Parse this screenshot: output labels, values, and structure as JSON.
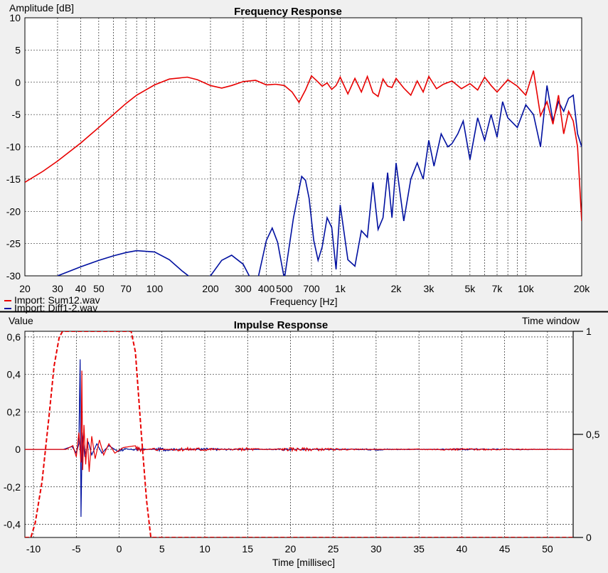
{
  "colors": {
    "series_red": "#e80000",
    "series_blue": "#0010a0",
    "plot_bg": "#ffffff",
    "window_bg": "#f0f0f0",
    "separator": "#000000"
  },
  "chart_data": [
    {
      "type": "line",
      "title": "Frequency Response",
      "xlabel": "Frequency [Hz]",
      "ylabel": "Amplitude [dB]",
      "xscale": "log",
      "xlim": [
        20,
        20000
      ],
      "ylim": [
        -30,
        10
      ],
      "x_tick_labels": [
        {
          "v": 20,
          "t": "20"
        },
        {
          "v": 30,
          "t": "30"
        },
        {
          "v": 40,
          "t": "40"
        },
        {
          "v": 50,
          "t": "50"
        },
        {
          "v": 70,
          "t": "70"
        },
        {
          "v": 100,
          "t": "100"
        },
        {
          "v": 200,
          "t": "200"
        },
        {
          "v": 300,
          "t": "300"
        },
        {
          "v": 400,
          "t": "400"
        },
        {
          "v": 500,
          "t": "500"
        },
        {
          "v": 700,
          "t": "700"
        },
        {
          "v": 1000,
          "t": "1k"
        },
        {
          "v": 2000,
          "t": "2k"
        },
        {
          "v": 3000,
          "t": "3k"
        },
        {
          "v": 5000,
          "t": "5k"
        },
        {
          "v": 7000,
          "t": "7k"
        },
        {
          "v": 10000,
          "t": "10k"
        },
        {
          "v": 20000,
          "t": "20k"
        }
      ],
      "y_ticks": [
        10,
        5,
        0,
        -5,
        -10,
        -15,
        -20,
        -25,
        -30
      ],
      "grid": true,
      "legend_position": "bottom-left",
      "series": [
        {
          "name": "Import: Sum12.wav",
          "color": "#e80000",
          "x": [
            20,
            25,
            30,
            40,
            50,
            60,
            70,
            80,
            100,
            120,
            150,
            170,
            200,
            230,
            260,
            300,
            350,
            400,
            450,
            500,
            550,
            600,
            650,
            700,
            750,
            800,
            850,
            900,
            950,
            1000,
            1100,
            1200,
            1300,
            1400,
            1500,
            1600,
            1700,
            1800,
            1900,
            2000,
            2200,
            2400,
            2600,
            2800,
            3000,
            3300,
            3600,
            4000,
            4500,
            5000,
            5500,
            6000,
            6500,
            7000,
            8000,
            9000,
            10000,
            11000,
            12000,
            13000,
            14000,
            15000,
            16000,
            17000,
            18000,
            19000,
            20000
          ],
          "y": [
            -15.5,
            -13.8,
            -12.2,
            -9.4,
            -7,
            -5,
            -3.3,
            -2,
            -0.4,
            0.5,
            0.8,
            0.4,
            -0.5,
            -0.9,
            -0.5,
            0.1,
            0.3,
            -0.4,
            -0.3,
            -0.5,
            -1.5,
            -3.1,
            -1.2,
            1.0,
            0.2,
            -0.6,
            -0.1,
            -1.1,
            -0.5,
            0.8,
            -1.8,
            0.6,
            -1.5,
            0.9,
            -1.6,
            -2.2,
            0.5,
            -0.6,
            -0.8,
            0.6,
            -0.9,
            -2.0,
            0.2,
            -1.5,
            0.9,
            -1.0,
            -0.3,
            0.2,
            -1.0,
            -0.2,
            -1.2,
            0.8,
            -0.5,
            -1.5,
            0.4,
            -0.6,
            -2.0,
            1.8,
            -5.2,
            -3.0,
            -6.5,
            -2.0,
            -8.0,
            -4.5,
            -6.0,
            -10.0,
            -21.5
          ]
        },
        {
          "name": "Import: Diff1-2.wav",
          "color": "#0010a0",
          "x": [
            30,
            40,
            50,
            60,
            70,
            80,
            100,
            120,
            140,
            160,
            180,
            200,
            230,
            260,
            300,
            330,
            360,
            400,
            430,
            460,
            500,
            560,
            620,
            650,
            680,
            720,
            760,
            800,
            850,
            900,
            950,
            1000,
            1100,
            1200,
            1300,
            1400,
            1500,
            1600,
            1700,
            1800,
            1900,
            2000,
            2200,
            2400,
            2600,
            2800,
            3000,
            3200,
            3500,
            3800,
            4000,
            4300,
            4600,
            5000,
            5500,
            6000,
            6500,
            7000,
            7500,
            8000,
            9000,
            10000,
            11000,
            12000,
            13000,
            14000,
            15000,
            16000,
            17000,
            18000,
            19000,
            20000
          ],
          "y": [
            -30,
            -28.6,
            -27.6,
            -26.9,
            -26.4,
            -26.1,
            -26.3,
            -27.5,
            -29.2,
            -31,
            -33,
            -30,
            -27.6,
            -26.8,
            -28.2,
            -31,
            -31,
            -24.5,
            -22.6,
            -24.8,
            -32,
            -21,
            -14.6,
            -15.2,
            -18,
            -24.5,
            -27.6,
            -25.5,
            -21,
            -22.5,
            -29,
            -19,
            -27.5,
            -28.5,
            -23,
            -24,
            -15.5,
            -22.8,
            -21,
            -14,
            -21,
            -12.5,
            -21.5,
            -15,
            -12.5,
            -15,
            -9,
            -13,
            -8,
            -10,
            -9.5,
            -8,
            -6,
            -12,
            -5.5,
            -9,
            -5,
            -8.5,
            -3,
            -5.5,
            -7,
            -3.5,
            -5,
            -10,
            -0.5,
            -6,
            -3,
            -4.5,
            -2.5,
            -2,
            -8,
            -10
          ]
        }
      ]
    },
    {
      "type": "line",
      "title": "Impulse Response",
      "xlabel": "Time [millisec]",
      "ylabel": "Value",
      "y2label": "Time window",
      "xlim": [
        -11,
        53
      ],
      "ylim": [
        -0.47,
        0.63
      ],
      "y2lim": [
        0,
        1
      ],
      "x_ticks": [
        -10,
        -5,
        0,
        5,
        10,
        15,
        20,
        25,
        30,
        35,
        40,
        45,
        50
      ],
      "y_tick_labels": [
        {
          "v": 0.6,
          "t": "0,6"
        },
        {
          "v": 0.4,
          "t": "0,4"
        },
        {
          "v": 0.2,
          "t": "0,2"
        },
        {
          "v": 0,
          "t": "0"
        },
        {
          "v": -0.2,
          "t": "-0,2"
        },
        {
          "v": -0.4,
          "t": "-0,4"
        }
      ],
      "y2_tick_labels": [
        {
          "v": 1,
          "t": "1"
        },
        {
          "v": 0.5,
          "t": "0,5"
        },
        {
          "v": 0,
          "t": "0"
        }
      ],
      "grid": true,
      "time_window": {
        "name": "Time window",
        "color": "#e80000",
        "style": "dashed",
        "x": [
          -11,
          -10.3,
          -9.8,
          -9.0,
          -8.2,
          -7.6,
          -7.0,
          -6.6,
          1.4,
          1.9,
          2.6,
          3.2,
          3.7,
          53
        ],
        "y": [
          0,
          0,
          0.07,
          0.27,
          0.58,
          0.83,
          0.97,
          1.0,
          1.0,
          0.9,
          0.5,
          0.18,
          0,
          0
        ]
      },
      "series": [
        {
          "name": "Import: Sum12.wav",
          "color": "#e80000",
          "x": [
            -11,
            -6.2,
            -5.4,
            -5.0,
            -4.7,
            -4.45,
            -4.35,
            -4.25,
            -4.1,
            -3.9,
            -3.7,
            -3.5,
            -3.2,
            -2.8,
            -2.3,
            -1.8,
            -1.2,
            -0.5,
            0.5,
            2,
            4,
            7,
            10,
            15,
            20,
            30,
            40,
            53
          ],
          "y": [
            0,
            0,
            0.02,
            -0.04,
            0.09,
            -0.07,
            0.42,
            -0.11,
            0.13,
            -0.08,
            0.06,
            -0.12,
            0.07,
            -0.05,
            0.05,
            -0.03,
            0.03,
            -0.02,
            0.01,
            0.02,
            -0.01,
            0.01,
            0.01,
            -0.01,
            0.01,
            0,
            0.005,
            0
          ]
        },
        {
          "name": "Import: Diff1-2.wav",
          "color": "#0010a0",
          "x": [
            -11,
            -6.5,
            -5.5,
            -5.0,
            -4.7,
            -4.55,
            -4.45,
            -4.3,
            -4.0,
            -3.6,
            -3.2,
            -2.6,
            -2.0,
            -1.2,
            0,
            2,
            5,
            10,
            20,
            30,
            40,
            53
          ],
          "y": [
            0,
            0,
            0.015,
            -0.02,
            0.03,
            0.48,
            -0.36,
            0.09,
            -0.04,
            0.04,
            -0.03,
            0.03,
            -0.02,
            0.02,
            -0.015,
            0.01,
            -0.01,
            0.008,
            -0.006,
            0.005,
            -0.004,
            0
          ]
        }
      ]
    }
  ]
}
